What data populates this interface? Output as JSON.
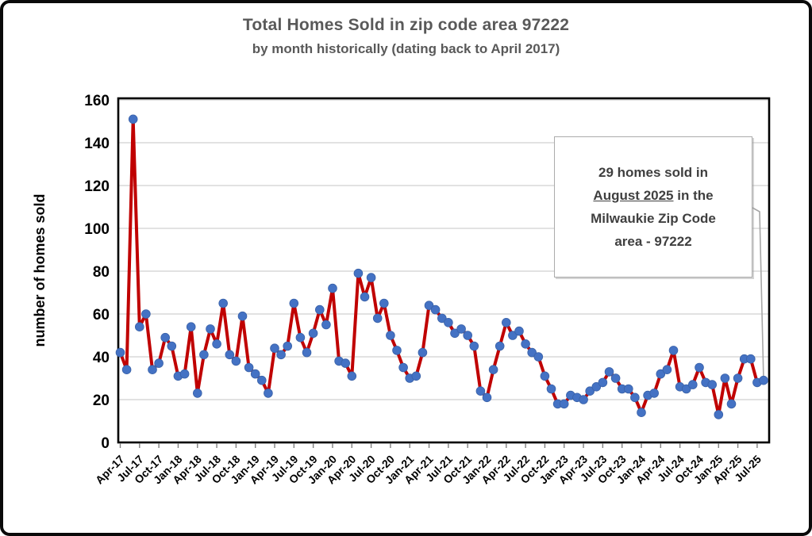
{
  "header": {
    "title": "Total Homes Sold in zip code area 97222",
    "subtitle": "by month historically (dating back to April 2017)"
  },
  "annotation": {
    "line1": "29 homes sold in",
    "line2_underline": "August 2025",
    "line2_rest": " in the",
    "line3": "Milwaukie Zip Code",
    "line4": "area - 97222"
  },
  "colors": {
    "line": "#C00000",
    "marker": "#4472C4",
    "marker_edge": "#3A62A8",
    "grid": "#D9D9D9",
    "axis": "#000000",
    "tick": "#7F7F7F",
    "tick_text": "#000000",
    "title_text": "#595959",
    "annotation_text": "#3F3F3F",
    "annotation_border": "#ABABAB",
    "leader": "#A6A6A6"
  },
  "chart_data": {
    "type": "line",
    "title": "Total Homes Sold in zip code area 97222",
    "subtitle": "by month historically (dating back to April 2017)",
    "xlabel": "",
    "ylabel": "number of homes sold",
    "ylim": [
      0,
      160
    ],
    "ytick_step": 20,
    "x_tick_every": 3,
    "grid": true,
    "legend": false,
    "annotation_value": 29,
    "annotation_month": "August 2025",
    "x": [
      "Apr-17",
      "May-17",
      "Jun-17",
      "Jul-17",
      "Aug-17",
      "Sep-17",
      "Oct-17",
      "Nov-17",
      "Dec-17",
      "Jan-18",
      "Feb-18",
      "Mar-18",
      "Apr-18",
      "May-18",
      "Jun-18",
      "Jul-18",
      "Aug-18",
      "Sep-18",
      "Oct-18",
      "Nov-18",
      "Dec-18",
      "Jan-19",
      "Feb-19",
      "Mar-19",
      "Apr-19",
      "May-19",
      "Jun-19",
      "Jul-19",
      "Aug-19",
      "Sep-19",
      "Oct-19",
      "Nov-19",
      "Dec-19",
      "Jan-20",
      "Feb-20",
      "Mar-20",
      "Apr-20",
      "May-20",
      "Jun-20",
      "Jul-20",
      "Aug-20",
      "Sep-20",
      "Oct-20",
      "Nov-20",
      "Dec-20",
      "Jan-21",
      "Feb-21",
      "Mar-21",
      "Apr-21",
      "May-21",
      "Jun-21",
      "Jul-21",
      "Aug-21",
      "Sep-21",
      "Oct-21",
      "Nov-21",
      "Dec-21",
      "Jan-22",
      "Feb-22",
      "Mar-22",
      "Apr-22",
      "May-22",
      "Jun-22",
      "Jul-22",
      "Aug-22",
      "Sep-22",
      "Oct-22",
      "Nov-22",
      "Dec-22",
      "Jan-23",
      "Feb-23",
      "Mar-23",
      "Apr-23",
      "May-23",
      "Jun-23",
      "Jul-23",
      "Aug-23",
      "Sep-23",
      "Oct-23",
      "Nov-23",
      "Dec-23",
      "Jan-24",
      "Feb-24",
      "Mar-24",
      "Apr-24",
      "May-24",
      "Jun-24",
      "Jul-24",
      "Aug-24",
      "Sep-24",
      "Oct-24",
      "Nov-24",
      "Dec-24",
      "Jan-25",
      "Feb-25",
      "Mar-25",
      "Apr-25",
      "May-25",
      "Jun-25",
      "Jul-25",
      "Aug-25"
    ],
    "values": [
      42,
      34,
      151,
      54,
      60,
      34,
      37,
      49,
      45,
      31,
      32,
      54,
      23,
      41,
      53,
      46,
      65,
      41,
      38,
      59,
      35,
      32,
      29,
      23,
      44,
      41,
      45,
      65,
      49,
      42,
      51,
      62,
      55,
      72,
      38,
      37,
      31,
      79,
      68,
      77,
      58,
      65,
      50,
      43,
      35,
      30,
      31,
      42,
      64,
      62,
      58,
      56,
      51,
      53,
      50,
      45,
      24,
      21,
      34,
      45,
      56,
      50,
      52,
      46,
      42,
      40,
      31,
      25,
      18,
      18,
      22,
      21,
      20,
      24,
      26,
      28,
      33,
      30,
      25,
      25,
      21,
      14,
      22,
      23,
      32,
      34,
      43,
      26,
      25,
      27,
      35,
      28,
      27,
      13,
      30,
      18,
      30,
      39,
      39,
      28,
      29
    ]
  }
}
